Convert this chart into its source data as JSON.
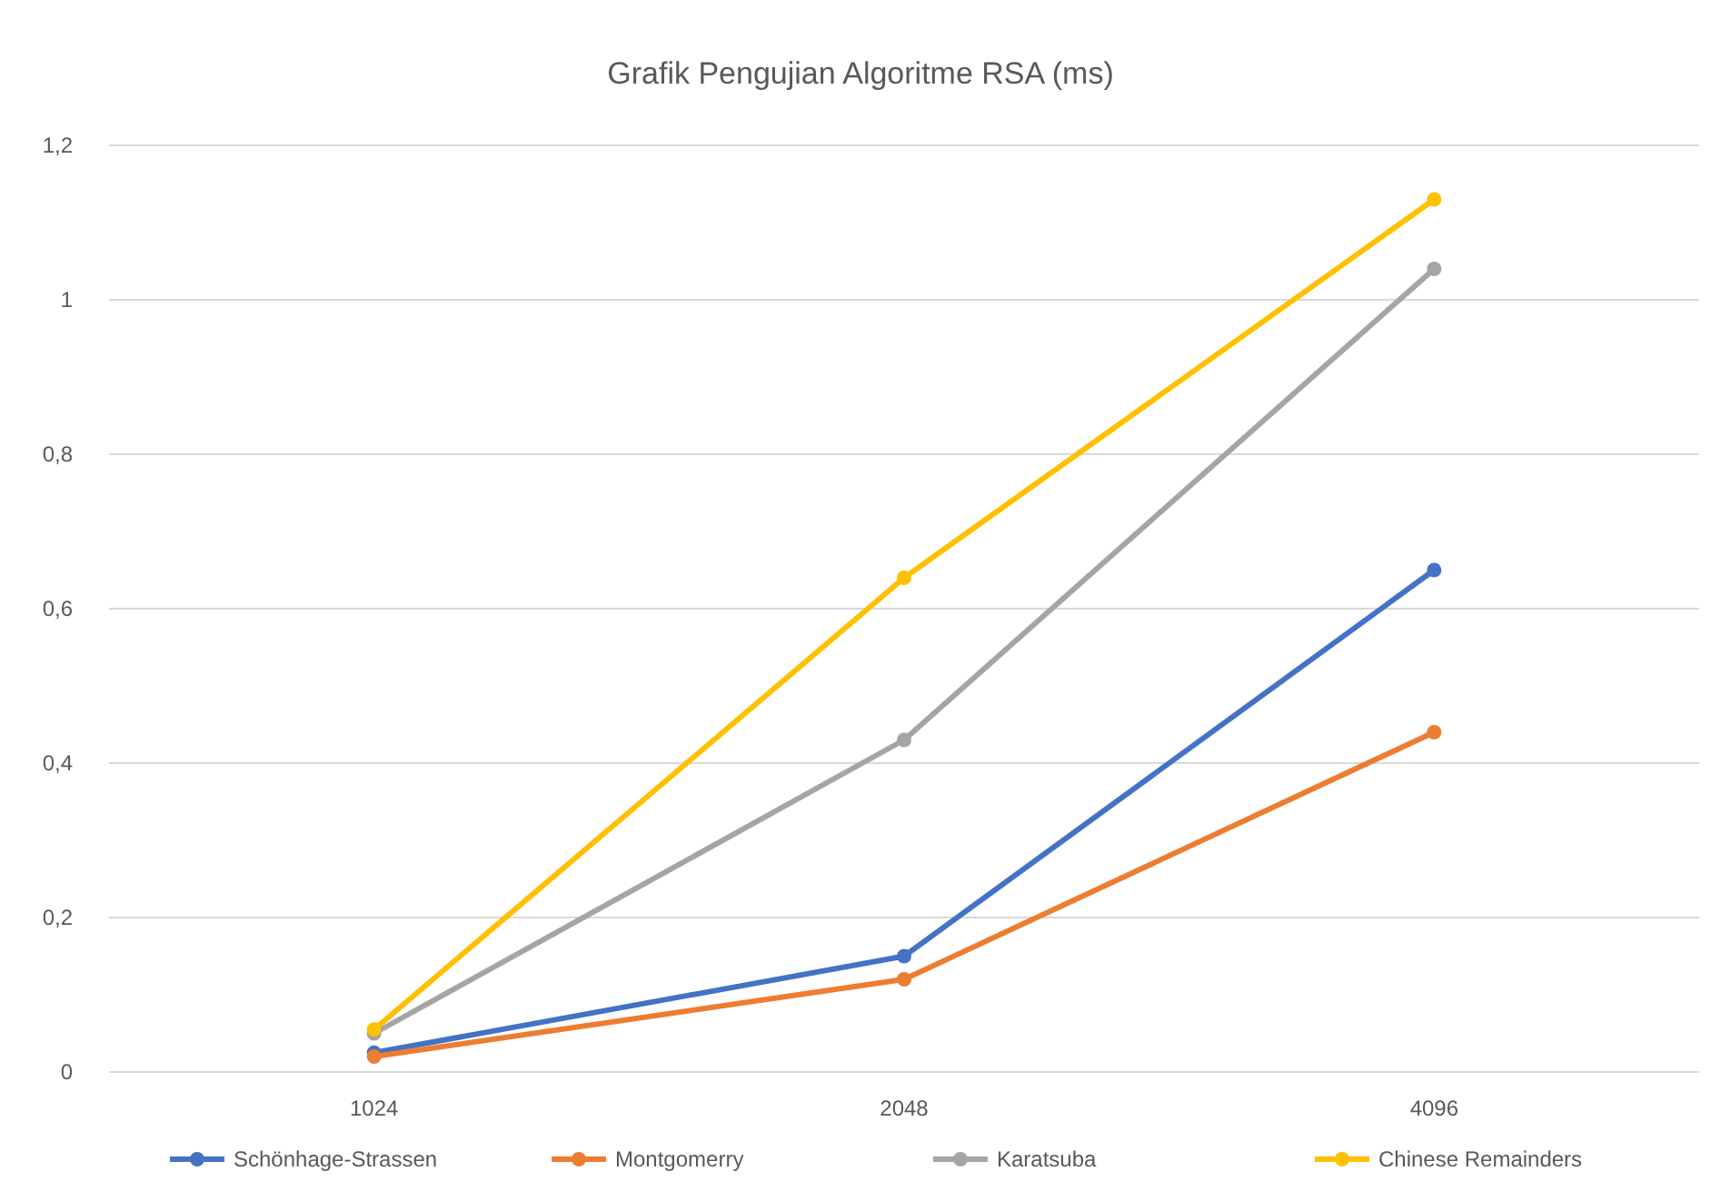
{
  "chart_data": {
    "type": "line",
    "title": "Grafik Pengujian Algoritme RSA (ms)",
    "categories": [
      "1024",
      "2048",
      "4096"
    ],
    "series": [
      {
        "name": "Schönhage-Strassen",
        "color": "#4472c4",
        "values": [
          0.025,
          0.15,
          0.65
        ]
      },
      {
        "name": "Montgomerry",
        "color": "#ed7d31",
        "values": [
          0.02,
          0.12,
          0.44
        ]
      },
      {
        "name": "Karatsuba",
        "color": "#a5a5a5",
        "values": [
          0.05,
          0.43,
          1.04
        ]
      },
      {
        "name": "Chinese Remainders",
        "color": "#ffc000",
        "values": [
          0.055,
          0.64,
          1.13
        ]
      }
    ],
    "ylim": [
      0,
      1.2
    ],
    "yticks": [
      0,
      {
        "value": 0.2,
        "label": "0,2"
      },
      {
        "value": 0.4,
        "label": "0,4"
      },
      {
        "value": 0.6,
        "label": "0,6"
      },
      {
        "value": 0.8,
        "label": "0,8"
      },
      1,
      {
        "value": 1.2,
        "label": "1,2"
      }
    ],
    "grid": "y",
    "legend": "bottom",
    "marker": "circle",
    "line_style": "solid"
  }
}
